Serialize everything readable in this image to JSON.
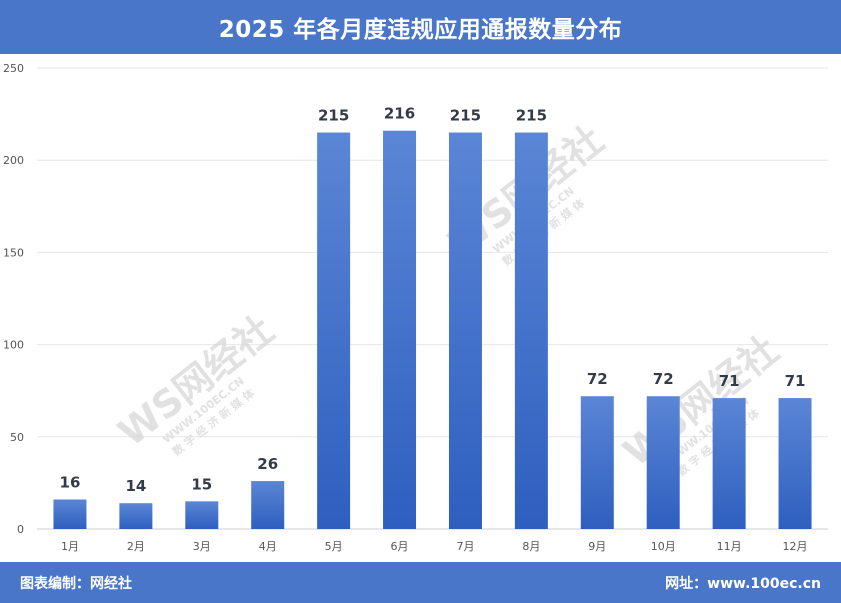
{
  "header": {
    "title": "2025 年各月度违规应用通报数量分布"
  },
  "footer": {
    "left_text": "图表编制：网经社",
    "right_text": "网址：www.100ec.cn"
  },
  "watermark": {
    "logo": "WS网经社",
    "url": "WWW.100EC.CN",
    "tagline": "数 字 经 济 新 媒 体"
  },
  "colors": {
    "bar_top": "#5b86d6",
    "bar_bottom": "#2e5fbf",
    "header_bg": "#4a76c9",
    "grid": "#e6e6e6"
  },
  "chart_data": {
    "type": "bar",
    "title": "2025 年各月度违规应用通报数量分布",
    "xlabel": "",
    "ylabel": "",
    "categories": [
      "1月",
      "2月",
      "3月",
      "4月",
      "5月",
      "6月",
      "7月",
      "8月",
      "9月",
      "10月",
      "11月",
      "12月"
    ],
    "values": [
      16,
      14,
      15,
      26,
      215,
      216,
      215,
      215,
      72,
      72,
      71,
      71
    ],
    "ylim": [
      0,
      250
    ],
    "yticks": [
      0,
      50,
      100,
      150,
      200,
      250
    ],
    "grid": true,
    "legend": "none"
  }
}
